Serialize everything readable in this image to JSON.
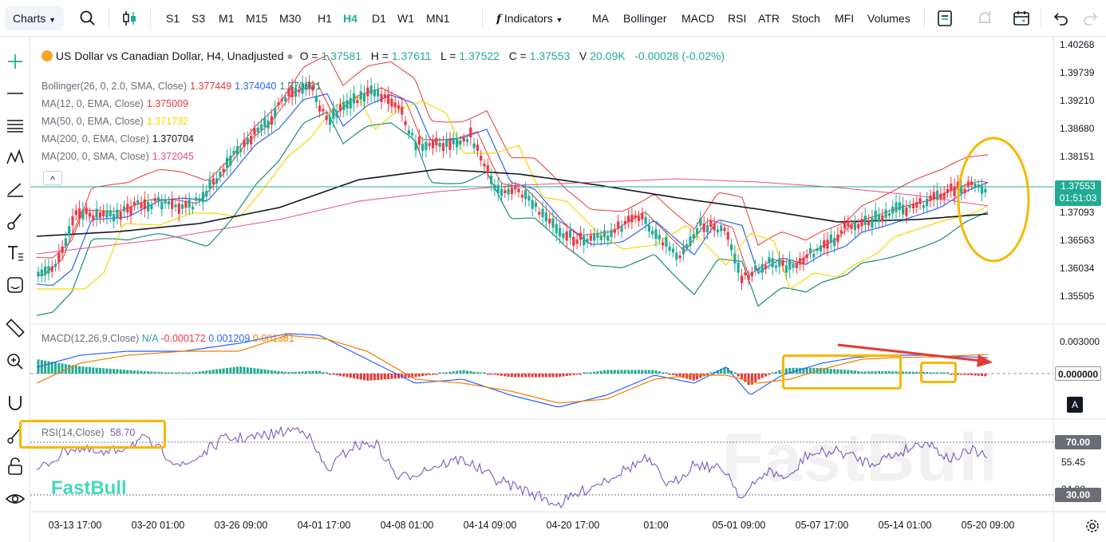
{
  "toolbar": {
    "charts_label": "Charts",
    "timeframes": [
      {
        "label": "S1",
        "active": false
      },
      {
        "label": "S3",
        "active": false
      },
      {
        "label": "M1",
        "active": false
      },
      {
        "label": "M15",
        "active": false
      },
      {
        "label": "M30",
        "active": false
      },
      {
        "label": "H1",
        "active": false
      },
      {
        "label": "H4",
        "active": true
      },
      {
        "label": "D1",
        "active": false
      },
      {
        "label": "W1",
        "active": false
      },
      {
        "label": "MN1",
        "active": false
      }
    ],
    "indicators_label": "Indicators",
    "indicator_shortcuts": [
      "MA",
      "Bollinger",
      "MACD",
      "RSI",
      "ATR",
      "Stoch",
      "MFI",
      "Volumes"
    ]
  },
  "legend": {
    "symbol_title": "US Dollar vs Canadian Dollar, H4, Unadjusted",
    "o_label": "O =",
    "o_value": "1.37581",
    "h_label": "H =",
    "h_value": "1.37611",
    "l_label": "L =",
    "l_value": "1.37522",
    "c_label": "C =",
    "c_value": "1.37553",
    "v_label": "V",
    "v_value": "20.09K",
    "change": "-0.00028 (-0.02%)",
    "indicators": [
      {
        "name": "Bollinger(26, 0, 2.0, SMA, Close)",
        "values": [
          "1.377449",
          "1.374040",
          "1.370631"
        ],
        "colors": [
          "#e53935",
          "#2962ff",
          "#1b8a7a"
        ]
      },
      {
        "name": "MA(12, 0, EMA, Close)",
        "values": [
          "1.375009"
        ],
        "colors": [
          "#e53935"
        ]
      },
      {
        "name": "MA(50, 0, EMA, Close)",
        "values": [
          "1.371732"
        ],
        "colors": [
          "#f5d800"
        ]
      },
      {
        "name": "MA(200, 0, EMA, Close)",
        "values": [
          "1.370704"
        ],
        "colors": [
          "#131722"
        ]
      },
      {
        "name": "MA(200, 0, SMA, Close)",
        "values": [
          "1.372045"
        ],
        "colors": [
          "#e94f86"
        ]
      }
    ],
    "collapse_symbol": "^"
  },
  "price_axis": {
    "ticks": [
      "1.40268",
      "1.39739",
      "1.39210",
      "1.38680",
      "1.38151",
      "1.37093",
      "1.36563",
      "1.36034",
      "1.35505"
    ],
    "current_price": "1.37553",
    "countdown": "01:51:03"
  },
  "macd": {
    "label": "MACD(12,26,9,Close)",
    "na": "N/A",
    "hist_value": "-0.000172",
    "macd_value": "0.001209",
    "signal_value": "0.001381",
    "axis_ticks": [
      "0.003000"
    ],
    "current": "0.000000",
    "auto_label": "A"
  },
  "rsi": {
    "label": "RSI(14,Close)",
    "value": "58.70",
    "axis_ticks": [
      "55.45",
      "34.90"
    ],
    "upper": "70.00",
    "lower": "30.00"
  },
  "time_axis": [
    "03-13 17:00",
    "03-20 01:00",
    "03-26 09:00",
    "04-01 17:00",
    "04-08 01:00",
    "04-14 09:00",
    "04-20 17:00",
    "01:00",
    "05-01 09:00",
    "05-07 17:00",
    "05-14 01:00",
    "05-20 09:00"
  ],
  "watermark": "FastBull",
  "colors": {
    "up": "#22ab94",
    "down": "#f23645",
    "highlight": "#f5b800",
    "arrow": "#e53935",
    "rsi_line": "#7e57c2"
  }
}
